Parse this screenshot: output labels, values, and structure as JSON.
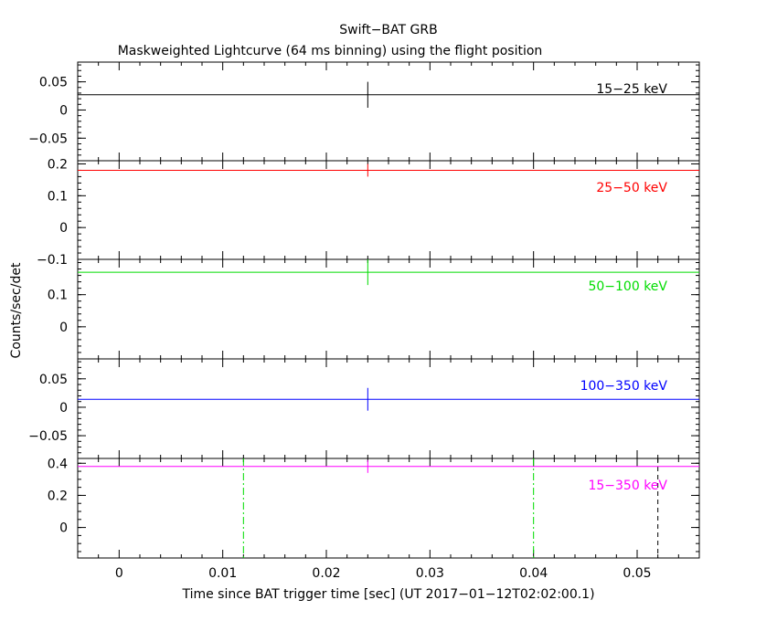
{
  "chart_data": {
    "type": "line",
    "title": "Swift−BAT GRB",
    "subtitle": "Maskweighted Lightcurve (64 ms binning) using the flight position",
    "xlabel": "Time since BAT trigger time [sec] (UT 2017−01−12T02:02:00.1)",
    "ylabel": "Counts/sec/det",
    "xlim": [
      -0.004,
      0.056
    ],
    "xticks": [
      0,
      0.01,
      0.02,
      0.03,
      0.04,
      0.05
    ],
    "xtick_labels": [
      "0",
      "0.01",
      "0.02",
      "0.03",
      "0.04",
      "0.05"
    ],
    "panels": [
      {
        "label": "15−25 keV",
        "color": "#000000",
        "ylim": [
          -0.09,
          0.085
        ],
        "yticks": [
          -0.05,
          0,
          0.05
        ],
        "ytick_labels": [
          "−0.05",
          "0",
          "0.05"
        ],
        "minor_step": 0.01,
        "x": [
          0.024
        ],
        "y": [
          0.027
        ],
        "yerr": [
          0.023
        ]
      },
      {
        "label": "25−50 keV",
        "color": "#ff0000",
        "ylim": [
          -0.1,
          0.21
        ],
        "yticks": [
          -0.1,
          0,
          0.1,
          0.2
        ],
        "ytick_labels": [
          "−0.1",
          "0",
          "0.1",
          "0.2"
        ],
        "minor_step": 0.02,
        "x": [
          0.024
        ],
        "y": [
          0.18
        ],
        "yerr": [
          0.02
        ]
      },
      {
        "label": "50−100 keV",
        "color": "#00dd00",
        "ylim": [
          -0.1,
          0.21
        ],
        "yticks": [
          0,
          0.1
        ],
        "ytick_labels": [
          "0",
          "0.1"
        ],
        "minor_step": 0.02,
        "x": [
          0.024
        ],
        "y": [
          0.17
        ],
        "yerr": [
          0.04
        ]
      },
      {
        "label": "100−350 keV",
        "color": "#0000ff",
        "ylim": [
          -0.09,
          0.085
        ],
        "yticks": [
          -0.05,
          0,
          0.05
        ],
        "ytick_labels": [
          "−0.05",
          "0",
          "0.05"
        ],
        "minor_step": 0.01,
        "x": [
          0.024
        ],
        "y": [
          0.014
        ],
        "yerr": [
          0.02
        ]
      },
      {
        "label": "15−350 keV",
        "color": "#ff00ff",
        "ylim": [
          -0.19,
          0.43
        ],
        "yticks": [
          0,
          0.2,
          0.4
        ],
        "ytick_labels": [
          "0",
          "0.2",
          "0.4"
        ],
        "minor_step": 0.05,
        "x": [
          0.024
        ],
        "y": [
          0.38
        ],
        "yerr": [
          0.04
        ],
        "vlines": [
          {
            "x": 0.012,
            "color": "#00dd00",
            "style": "dashdot"
          },
          {
            "x": 0.04,
            "color": "#00dd00",
            "style": "dashdot"
          },
          {
            "x": 0.052,
            "color": "#000000",
            "style": "dashed"
          }
        ]
      }
    ]
  }
}
